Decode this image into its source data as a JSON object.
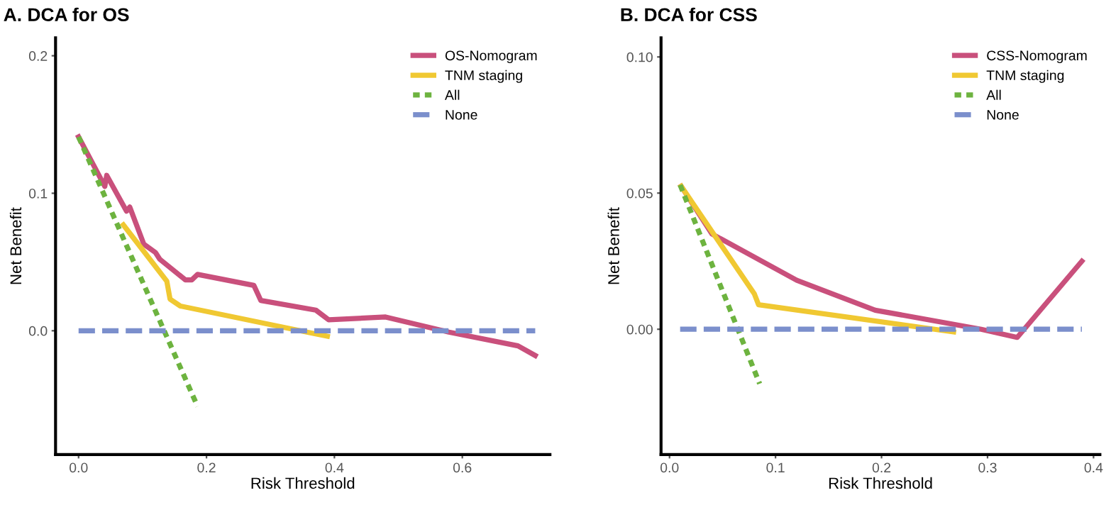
{
  "chart_data": [
    {
      "type": "line",
      "title": "A. DCA for OS",
      "xlabel": "Risk Threshold",
      "ylabel": "Net Benefit",
      "xlim": [
        -0.036,
        0.737
      ],
      "ylim": [
        -0.09,
        0.213
      ],
      "xticks": [
        {
          "value": 0,
          "label": "0.0"
        },
        0.2,
        0.4,
        0.6
      ],
      "yticks": [
        {
          "value": 0,
          "label": "0.0"
        },
        0.1,
        0.2
      ],
      "grid": false,
      "legend": "top right",
      "series": [
        {
          "name": "OS-Nomogram",
          "color": "#c9507c",
          "line_style": "solid",
          "x": [
            0,
            0.041,
            0.044,
            0.075,
            0.08,
            0.102,
            0.12,
            0.127,
            0.167,
            0.177,
            0.186,
            0.274,
            0.285,
            0.371,
            0.391,
            0.48,
            0.579,
            0.687,
            0.714
          ],
          "values": [
            0.141,
            0.105,
            0.113,
            0.087,
            0.09,
            0.063,
            0.057,
            0.052,
            0.037,
            0.037,
            0.041,
            0.033,
            0.022,
            0.015,
            0.008,
            0.01,
            -0.001,
            -0.011,
            -0.018
          ]
        },
        {
          "name": "TNM staging",
          "color": "#f0c832",
          "line_style": "solid",
          "x": [
            0.07,
            0.138,
            0.143,
            0.159,
            0.357,
            0.389
          ],
          "values": [
            0.077,
            0.036,
            0.023,
            0.018,
            -0.001,
            -0.004
          ]
        },
        {
          "name": "All",
          "color": "#6db33f",
          "line_style": "dotted",
          "x": [
            0,
            0.186
          ],
          "values": [
            0.141,
            -0.055
          ]
        },
        {
          "name": "None",
          "color": "#7b8fcc",
          "line_style": "dashed",
          "x": [
            0,
            0.714
          ],
          "values": [
            0,
            0
          ]
        }
      ]
    },
    {
      "type": "line",
      "title": "B. DCA for CSS",
      "xlabel": "Risk Threshold",
      "ylabel": "Net Benefit",
      "xlim": [
        -0.008,
        0.406
      ],
      "ylim": [
        -0.046,
        0.107
      ],
      "xticks": [
        {
          "value": 0,
          "label": "0.0"
        },
        0.1,
        0.2,
        0.3,
        0.4
      ],
      "yticks": [
        {
          "value": 0.0,
          "label": "0.00"
        },
        {
          "value": 0.05,
          "label": "0.05"
        },
        {
          "value": 0.1,
          "label": "0.10"
        }
      ],
      "grid": false,
      "legend": "top right",
      "series": [
        {
          "name": "CSS-Nomogram",
          "color": "#c9507c",
          "line_style": "solid",
          "x": [
            0.011,
            0.04,
            0.12,
            0.194,
            0.294,
            0.328,
            0.389
          ],
          "values": [
            0.0525,
            0.035,
            0.018,
            0.007,
            0.0,
            -0.003,
            0.025
          ]
        },
        {
          "name": "TNM staging",
          "color": "#f0c832",
          "line_style": "solid",
          "x": [
            0.011,
            0.08,
            0.084,
            0.268
          ],
          "values": [
            0.0525,
            0.013,
            0.009,
            -0.001
          ]
        },
        {
          "name": "All",
          "color": "#6db33f",
          "line_style": "dotted",
          "x": [
            0.01,
            0.085
          ],
          "values": [
            0.053,
            -0.02
          ]
        },
        {
          "name": "None",
          "color": "#7b8fcc",
          "line_style": "dashed",
          "x": [
            0.01,
            0.389
          ],
          "values": [
            0,
            0
          ]
        }
      ]
    }
  ]
}
